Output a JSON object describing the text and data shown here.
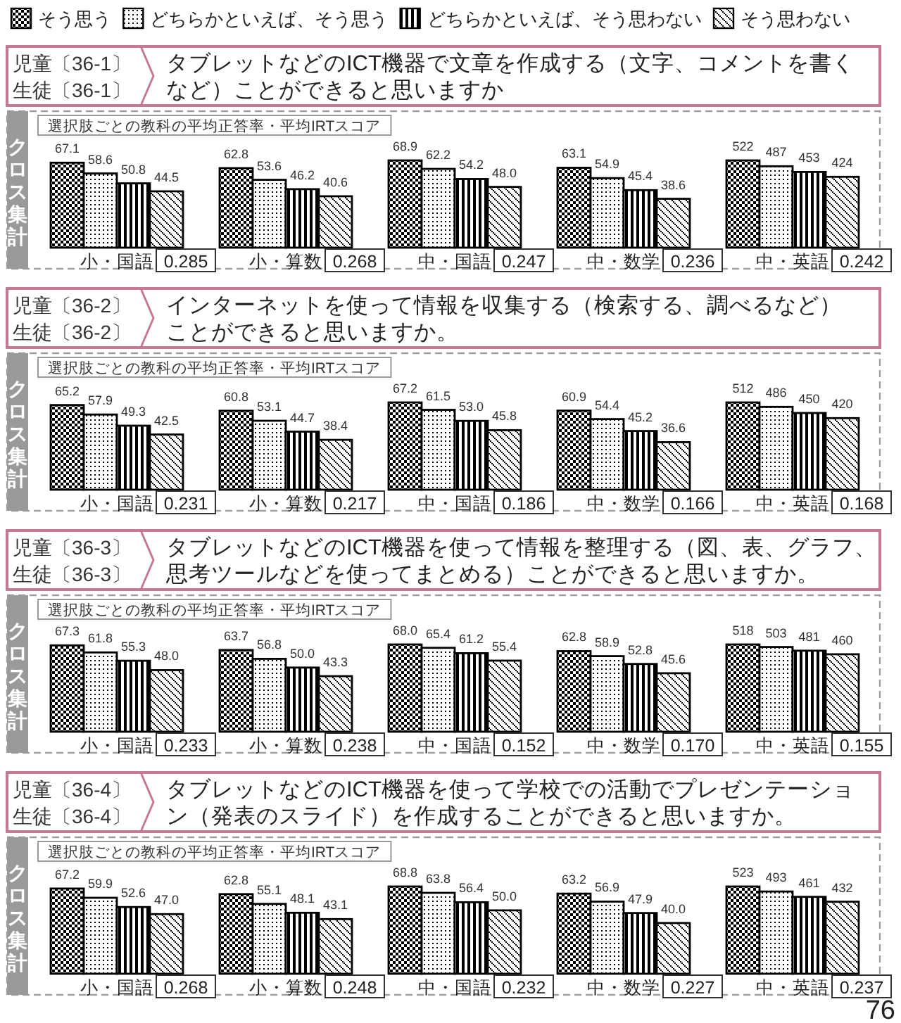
{
  "chart_data": [
    {
      "type": "bar",
      "title": "タブレットなどのICT機器で文章を作成する（文字、コメントを書くなど）ことができると思いますか",
      "subtitle": "選択肢ごとの教科の平均正答率・平均IRTスコア",
      "ylabel": "クロス集計",
      "legend": "top",
      "categories": [
        "小・国語",
        "小・算数",
        "中・国語",
        "中・数学",
        "中・英語"
      ],
      "annotations": [
        "児童〔36-1〕",
        "生徒〔36-1〕",
        "0.285",
        "0.268",
        "0.247",
        "0.236",
        "0.242"
      ],
      "series": [
        {
          "name": "そう思う",
          "color": "#000000",
          "values": [
            67.1,
            62.8,
            68.9,
            63.1,
            null
          ],
          "value_labels": [
            "67.1",
            "62.8",
            "68.9",
            "63.1",
            null
          ]
        },
        {
          "name": "どちらかといえば、そう思う",
          "color": "#000000",
          "values": [
            58.6,
            53.6,
            62.2,
            54.9,
            null
          ],
          "value_labels": [
            "58.6",
            "53.6",
            "62.2",
            "54.9",
            null
          ]
        },
        {
          "name": "どちらかといえば、そう思わない",
          "color": "#000000",
          "values": [
            50.8,
            46.2,
            54.2,
            45.4,
            null
          ],
          "value_labels": [
            "50.8",
            "46.2",
            "54.2",
            "45.4",
            null
          ]
        },
        {
          "name": "そう思わない",
          "color": "#000000",
          "values": [
            44.5,
            40.6,
            48.0,
            38.6,
            null
          ],
          "value_labels": [
            "44.5",
            "40.6",
            "48.0",
            "38.6",
            null
          ]
        },
        {
          "color": "#000000",
          "axis": "y2",
          "values": [
            null,
            null,
            null,
            null,
            522
          ],
          "value_labels": [
            null,
            null,
            null,
            null,
            "522"
          ]
        },
        {
          "color": "#000000",
          "axis": "y2",
          "values": [
            null,
            null,
            null,
            null,
            487
          ],
          "value_labels": [
            null,
            null,
            null,
            null,
            "487"
          ]
        },
        {
          "color": "#000000",
          "axis": "y2",
          "values": [
            null,
            null,
            null,
            null,
            453
          ],
          "value_labels": [
            null,
            null,
            null,
            null,
            "453"
          ]
        },
        {
          "color": "#000000",
          "axis": "y2",
          "values": [
            null,
            null,
            null,
            null,
            424
          ],
          "value_labels": [
            null,
            null,
            null,
            null,
            "424"
          ]
        }
      ]
    },
    {
      "type": "bar",
      "title": "インターネットを使って情報を収集する（検索する、調べるなど）ことができると思いますか。",
      "subtitle": "選択肢ごとの教科の平均正答率・平均IRTスコア",
      "ylabel": "クロス集計",
      "categories": [
        "小・国語",
        "小・算数",
        "中・国語",
        "中・数学",
        "中・英語"
      ],
      "annotations": [
        "児童〔36-2〕",
        "生徒〔36-2〕",
        "0.231",
        "0.217",
        "0.186",
        "0.166",
        "0.168"
      ],
      "series": [
        {
          "color": "#000000",
          "values": [
            65.2,
            60.8,
            67.2,
            60.9,
            null
          ],
          "value_labels": [
            "65.2",
            "60.8",
            "67.2",
            "60.9",
            null
          ]
        },
        {
          "color": "#000000",
          "values": [
            57.9,
            53.1,
            61.5,
            54.4,
            null
          ],
          "value_labels": [
            "57.9",
            "53.1",
            "61.5",
            "54.4",
            null
          ]
        },
        {
          "color": "#000000",
          "values": [
            49.3,
            44.7,
            53.0,
            45.2,
            null
          ],
          "value_labels": [
            "49.3",
            "44.7",
            "53.0",
            "45.2",
            null
          ]
        },
        {
          "color": "#000000",
          "values": [
            42.5,
            38.4,
            45.8,
            36.6,
            null
          ],
          "value_labels": [
            "42.5",
            "38.4",
            "45.8",
            "36.6",
            null
          ]
        },
        {
          "color": "#000000",
          "axis": "y2",
          "values": [
            null,
            null,
            null,
            null,
            512
          ],
          "value_labels": [
            null,
            null,
            null,
            null,
            "512"
          ]
        },
        {
          "color": "#000000",
          "axis": "y2",
          "values": [
            null,
            null,
            null,
            null,
            486
          ],
          "value_labels": [
            null,
            null,
            null,
            null,
            "486"
          ]
        },
        {
          "color": "#000000",
          "axis": "y2",
          "values": [
            null,
            null,
            null,
            null,
            450
          ],
          "value_labels": [
            null,
            null,
            null,
            null,
            "450"
          ]
        },
        {
          "color": "#000000",
          "axis": "y2",
          "values": [
            null,
            null,
            null,
            null,
            420
          ],
          "value_labels": [
            null,
            null,
            null,
            null,
            "420"
          ]
        }
      ]
    },
    {
      "type": "bar",
      "title": "タブレットなどのICT機器を使って情報を整理する（図、表、グラフ、思考ツールなどを使ってまとめる）ことができると思いますか。",
      "subtitle": "選択肢ごとの教科の平均正答率・平均IRTスコア",
      "ylabel": "クロス集計",
      "categories": [
        "小・国語",
        "小・算数",
        "中・国語",
        "中・数学",
        "中・英語"
      ],
      "annotations": [
        "児童〔36-3〕",
        "生徒〔36-3〕",
        "0.233",
        "0.238",
        "0.152",
        "0.170",
        "0.155"
      ],
      "series": [
        {
          "color": "#000000",
          "values": [
            67.3,
            63.7,
            68.0,
            62.8,
            null
          ],
          "value_labels": [
            "67.3",
            "63.7",
            "68.0",
            "62.8",
            null
          ]
        },
        {
          "color": "#000000",
          "values": [
            61.8,
            56.8,
            65.4,
            58.9,
            null
          ],
          "value_labels": [
            "61.8",
            "56.8",
            "65.4",
            "58.9",
            null
          ]
        },
        {
          "color": "#000000",
          "values": [
            55.3,
            50.0,
            61.2,
            52.8,
            null
          ],
          "value_labels": [
            "55.3",
            "50.0",
            "61.2",
            "52.8",
            null
          ]
        },
        {
          "color": "#000000",
          "values": [
            48.0,
            43.3,
            55.4,
            45.6,
            null
          ],
          "value_labels": [
            "48.0",
            "43.3",
            "55.4",
            "45.6",
            null
          ]
        },
        {
          "color": "#000000",
          "axis": "y2",
          "values": [
            null,
            null,
            null,
            null,
            518
          ],
          "value_labels": [
            null,
            null,
            null,
            null,
            "518"
          ]
        },
        {
          "color": "#000000",
          "axis": "y2",
          "values": [
            null,
            null,
            null,
            null,
            503
          ],
          "value_labels": [
            null,
            null,
            null,
            null,
            "503"
          ]
        },
        {
          "color": "#000000",
          "axis": "y2",
          "values": [
            null,
            null,
            null,
            null,
            481
          ],
          "value_labels": [
            null,
            null,
            null,
            null,
            "481"
          ]
        },
        {
          "color": "#000000",
          "axis": "y2",
          "values": [
            null,
            null,
            null,
            null,
            460
          ],
          "value_labels": [
            null,
            null,
            null,
            null,
            "460"
          ]
        }
      ]
    },
    {
      "type": "bar",
      "title": "タブレットなどのICT機器を使って学校での活動でプレゼンテーション（発表のスライド）を作成することができると思いますか。",
      "subtitle": "選択肢ごとの教科の平均正答率・平均IRTスコア",
      "ylabel": "クロス集計",
      "categories": [
        "小・国語",
        "小・算数",
        "中・国語",
        "中・数学",
        "中・英語"
      ],
      "annotations": [
        "児童〔36-4〕",
        "生徒〔36-4〕",
        "0.268",
        "0.248",
        "0.232",
        "0.227",
        "0.237",
        "76"
      ],
      "series": [
        {
          "color": "#000000",
          "values": [
            67.2,
            62.8,
            68.8,
            63.2,
            null
          ],
          "value_labels": [
            "67.2",
            "62.8",
            "68.8",
            "63.2",
            null
          ]
        },
        {
          "color": "#000000",
          "values": [
            59.9,
            55.1,
            63.8,
            56.9,
            null
          ],
          "value_labels": [
            "59.9",
            "55.1",
            "63.8",
            "56.9",
            null
          ]
        },
        {
          "color": "#000000",
          "values": [
            52.6,
            48.1,
            56.4,
            47.9,
            null
          ],
          "value_labels": [
            "52.6",
            "48.1",
            "56.4",
            "47.9",
            null
          ]
        },
        {
          "color": "#000000",
          "values": [
            47.0,
            43.1,
            50.0,
            40.0,
            null
          ],
          "value_labels": [
            "47.0",
            "43.1",
            "50.0",
            "40.0",
            null
          ]
        },
        {
          "color": "#000000",
          "axis": "y2",
          "values": [
            null,
            null,
            null,
            null,
            523
          ],
          "value_labels": [
            null,
            null,
            null,
            null,
            "523"
          ]
        },
        {
          "color": "#000000",
          "axis": "y2",
          "values": [
            null,
            null,
            null,
            null,
            493
          ],
          "value_labels": [
            null,
            null,
            null,
            null,
            "493"
          ]
        },
        {
          "color": "#000000",
          "axis": "y2",
          "values": [
            null,
            null,
            null,
            null,
            461
          ],
          "value_labels": [
            null,
            null,
            null,
            null,
            "461"
          ]
        },
        {
          "color": "#000000",
          "axis": "y2",
          "values": [
            null,
            null,
            null,
            null,
            432
          ],
          "value_labels": [
            null,
            null,
            null,
            null,
            "432"
          ]
        }
      ]
    }
  ]
}
